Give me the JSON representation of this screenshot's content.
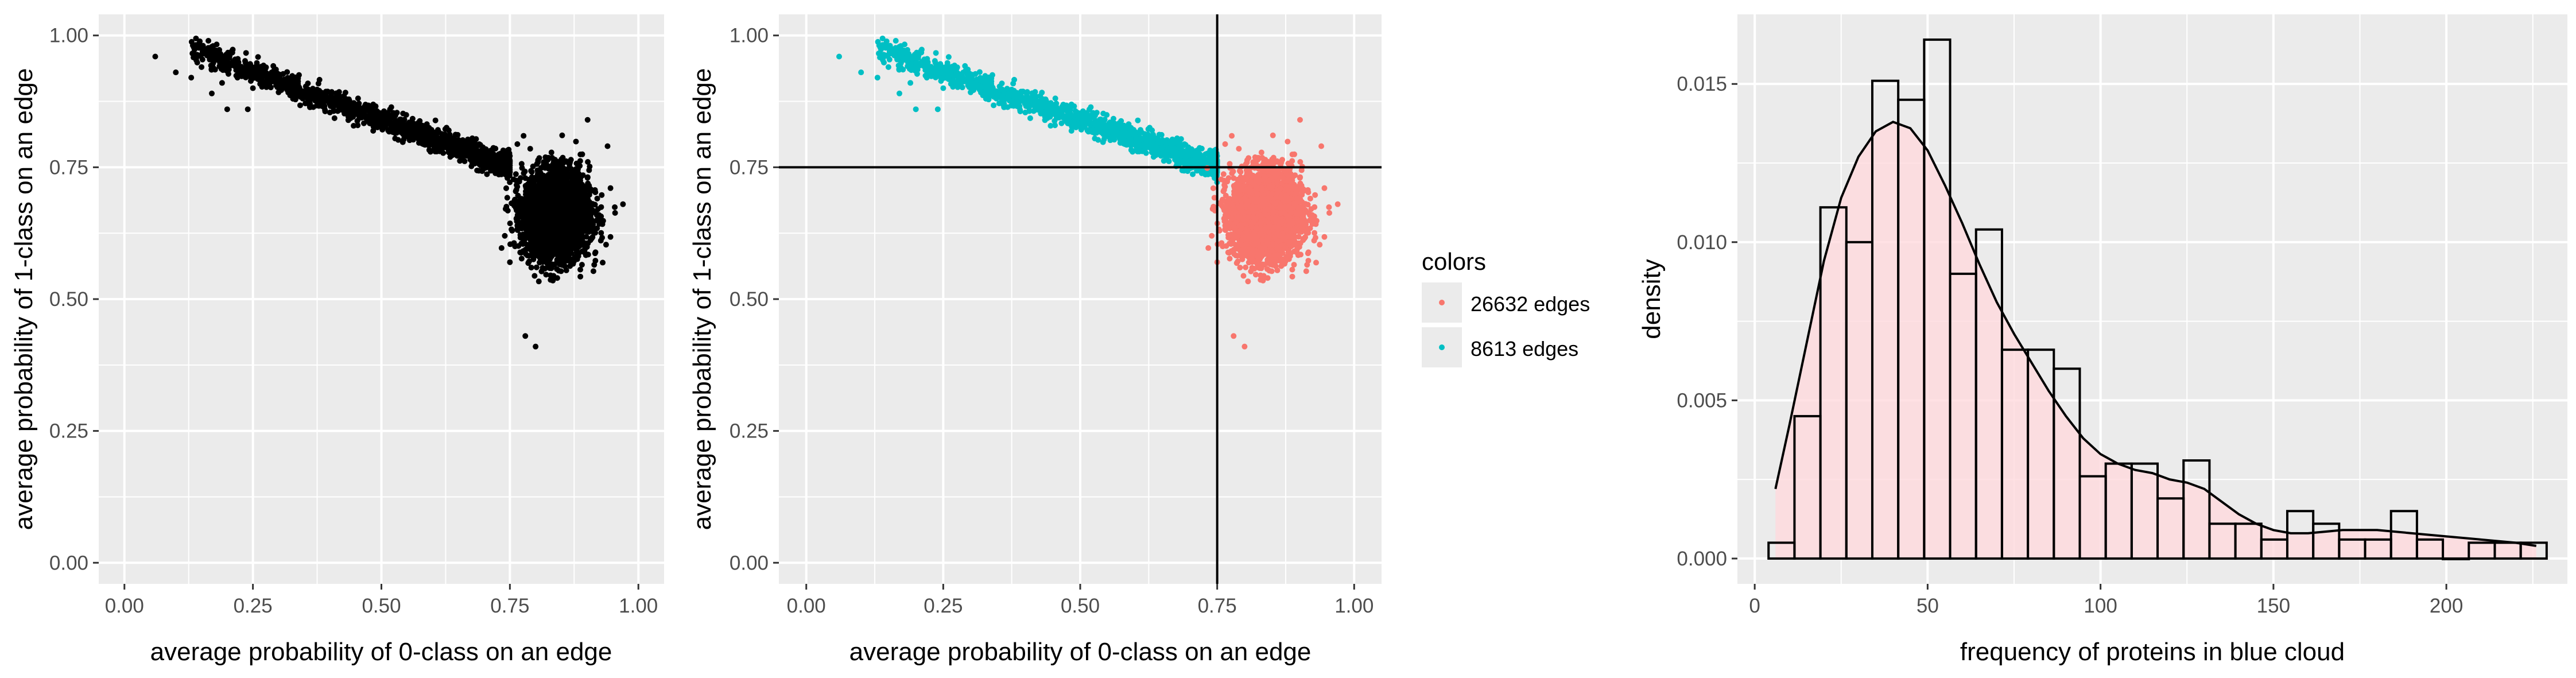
{
  "chart_data": [
    {
      "type": "scatter",
      "xlabel": "average probability of 0-class on an edge",
      "ylabel": "average probability of 1-class on an edge",
      "xlim": [
        -0.05,
        1.05
      ],
      "ylim": [
        -0.04,
        1.04
      ],
      "xticks": [
        "0.00",
        "0.25",
        "0.50",
        "0.75",
        "1.00"
      ],
      "yticks": [
        "0.00",
        "0.25",
        "0.50",
        "0.75",
        "1.00"
      ],
      "grid": true,
      "point_color": "#000000",
      "point_count_estimate": 35245
    },
    {
      "type": "scatter",
      "xlabel": "average probability of 0-class on an edge",
      "ylabel": "average probability of 1-class on an edge",
      "xlim": [
        -0.05,
        1.05
      ],
      "ylim": [
        -0.04,
        1.04
      ],
      "xticks": [
        "0.00",
        "0.25",
        "0.50",
        "0.75",
        "1.00"
      ],
      "yticks": [
        "0.00",
        "0.25",
        "0.50",
        "0.75",
        "1.00"
      ],
      "grid": true,
      "reference_lines": {
        "vline_x": 0.75,
        "hline_y": 0.75
      },
      "legend": {
        "title": "colors",
        "placement": "right",
        "entries": [
          {
            "label": "26632 edges",
            "color": "#F8766D"
          },
          {
            "label": "8613 edges",
            "color": "#00BFC4"
          }
        ]
      },
      "series": [
        {
          "name": "26632 edges",
          "color": "#F8766D"
        },
        {
          "name": "8613 edges",
          "color": "#00BFC4"
        }
      ]
    },
    {
      "type": "bar",
      "subtype": "histogram with density curve",
      "xlabel": "frequency of proteins in blue cloud",
      "ylabel": "density",
      "xlim": [
        -5,
        235
      ],
      "ylim": [
        -0.0008,
        0.0172
      ],
      "xticks": [
        "0",
        "50",
        "100",
        "150",
        "200"
      ],
      "yticks": [
        "0.000",
        "0.005",
        "0.010",
        "0.015"
      ],
      "grid": true,
      "bin_width": 7.5,
      "bins": [
        {
          "x0": 4,
          "density": 0.0005
        },
        {
          "x0": 11.5,
          "density": 0.0045
        },
        {
          "x0": 19,
          "density": 0.0111
        },
        {
          "x0": 26.5,
          "density": 0.01
        },
        {
          "x0": 34,
          "density": 0.0151
        },
        {
          "x0": 41.5,
          "density": 0.0145
        },
        {
          "x0": 49,
          "density": 0.0164
        },
        {
          "x0": 56.5,
          "density": 0.009
        },
        {
          "x0": 64,
          "density": 0.0104
        },
        {
          "x0": 71.5,
          "density": 0.0066
        },
        {
          "x0": 79,
          "density": 0.0066
        },
        {
          "x0": 86.5,
          "density": 0.006
        },
        {
          "x0": 94,
          "density": 0.0026
        },
        {
          "x0": 101.5,
          "density": 0.003
        },
        {
          "x0": 109,
          "density": 0.003
        },
        {
          "x0": 116.5,
          "density": 0.0019
        },
        {
          "x0": 124,
          "density": 0.0031
        },
        {
          "x0": 131.5,
          "density": 0.0011
        },
        {
          "x0": 139,
          "density": 0.0011
        },
        {
          "x0": 146.5,
          "density": 0.0006
        },
        {
          "x0": 154,
          "density": 0.0015
        },
        {
          "x0": 161.5,
          "density": 0.0011
        },
        {
          "x0": 169,
          "density": 0.0006
        },
        {
          "x0": 176.5,
          "density": 0.0006
        },
        {
          "x0": 184,
          "density": 0.0015
        },
        {
          "x0": 191.5,
          "density": 0.0006
        },
        {
          "x0": 199,
          "density": 0.0
        },
        {
          "x0": 206.5,
          "density": 0.0005
        },
        {
          "x0": 214,
          "density": 0.0005
        },
        {
          "x0": 221.5,
          "density": 0.0005
        }
      ],
      "density_curve": {
        "x": [
          6,
          10,
          15,
          20,
          25,
          30,
          35,
          40,
          45,
          50,
          55,
          60,
          65,
          70,
          75,
          80,
          85,
          90,
          95,
          100,
          105,
          110,
          115,
          120,
          125,
          130,
          135,
          140,
          145,
          150,
          155,
          160,
          170,
          180,
          190,
          200,
          210,
          220,
          226
        ],
        "y": [
          0.0022,
          0.0042,
          0.0068,
          0.0094,
          0.0114,
          0.0127,
          0.0135,
          0.0138,
          0.0136,
          0.0129,
          0.0118,
          0.0106,
          0.0093,
          0.0081,
          0.0071,
          0.0062,
          0.0053,
          0.0045,
          0.0038,
          0.0033,
          0.003,
          0.0028,
          0.0027,
          0.0025,
          0.0024,
          0.0022,
          0.0018,
          0.0014,
          0.0011,
          0.0009,
          0.0008,
          0.0008,
          0.0009,
          0.0009,
          0.0008,
          0.0007,
          0.0006,
          0.0005,
          0.0004
        ]
      },
      "bar_color": "#ffffff",
      "bar_edge_color": "#000000",
      "fill_color": "#FFD9DC"
    }
  ]
}
